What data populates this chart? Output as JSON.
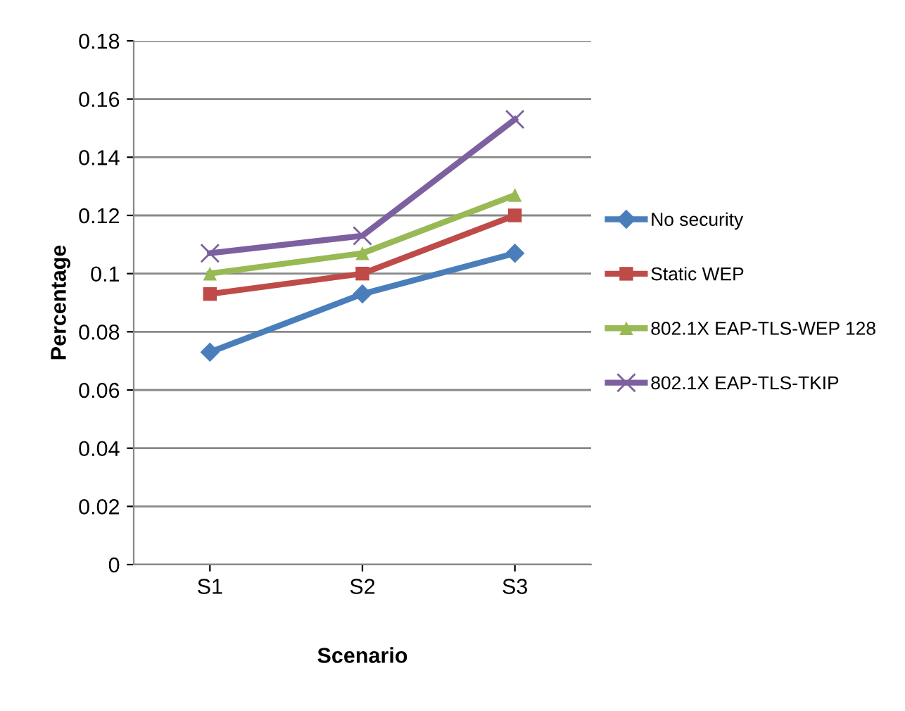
{
  "chart_data": {
    "type": "line",
    "xlabel": "Scenario",
    "ylabel": "Percentage",
    "categories": [
      "S1",
      "S2",
      "S3"
    ],
    "series": [
      {
        "name": "No security",
        "color": "#4a7ebb",
        "marker": "diamond",
        "values": [
          0.073,
          0.093,
          0.107
        ]
      },
      {
        "name": "Static WEP",
        "color": "#be4b48",
        "marker": "square",
        "values": [
          0.093,
          0.1,
          0.12
        ]
      },
      {
        "name": "802.1X EAP-TLS-WEP 128",
        "color": "#98b954",
        "marker": "triangle",
        "values": [
          0.1,
          0.107,
          0.127
        ]
      },
      {
        "name": "802.1X EAP-TLS-TKIP",
        "color": "#7d60a0",
        "marker": "cross",
        "values": [
          0.107,
          0.113,
          0.153
        ]
      }
    ],
    "ylim": [
      0,
      0.18
    ],
    "yticks": [
      0,
      0.02,
      0.04,
      0.06,
      0.08,
      0.1,
      0.12,
      0.14,
      0.16,
      0.18
    ],
    "grid": "y",
    "legend": "right"
  }
}
